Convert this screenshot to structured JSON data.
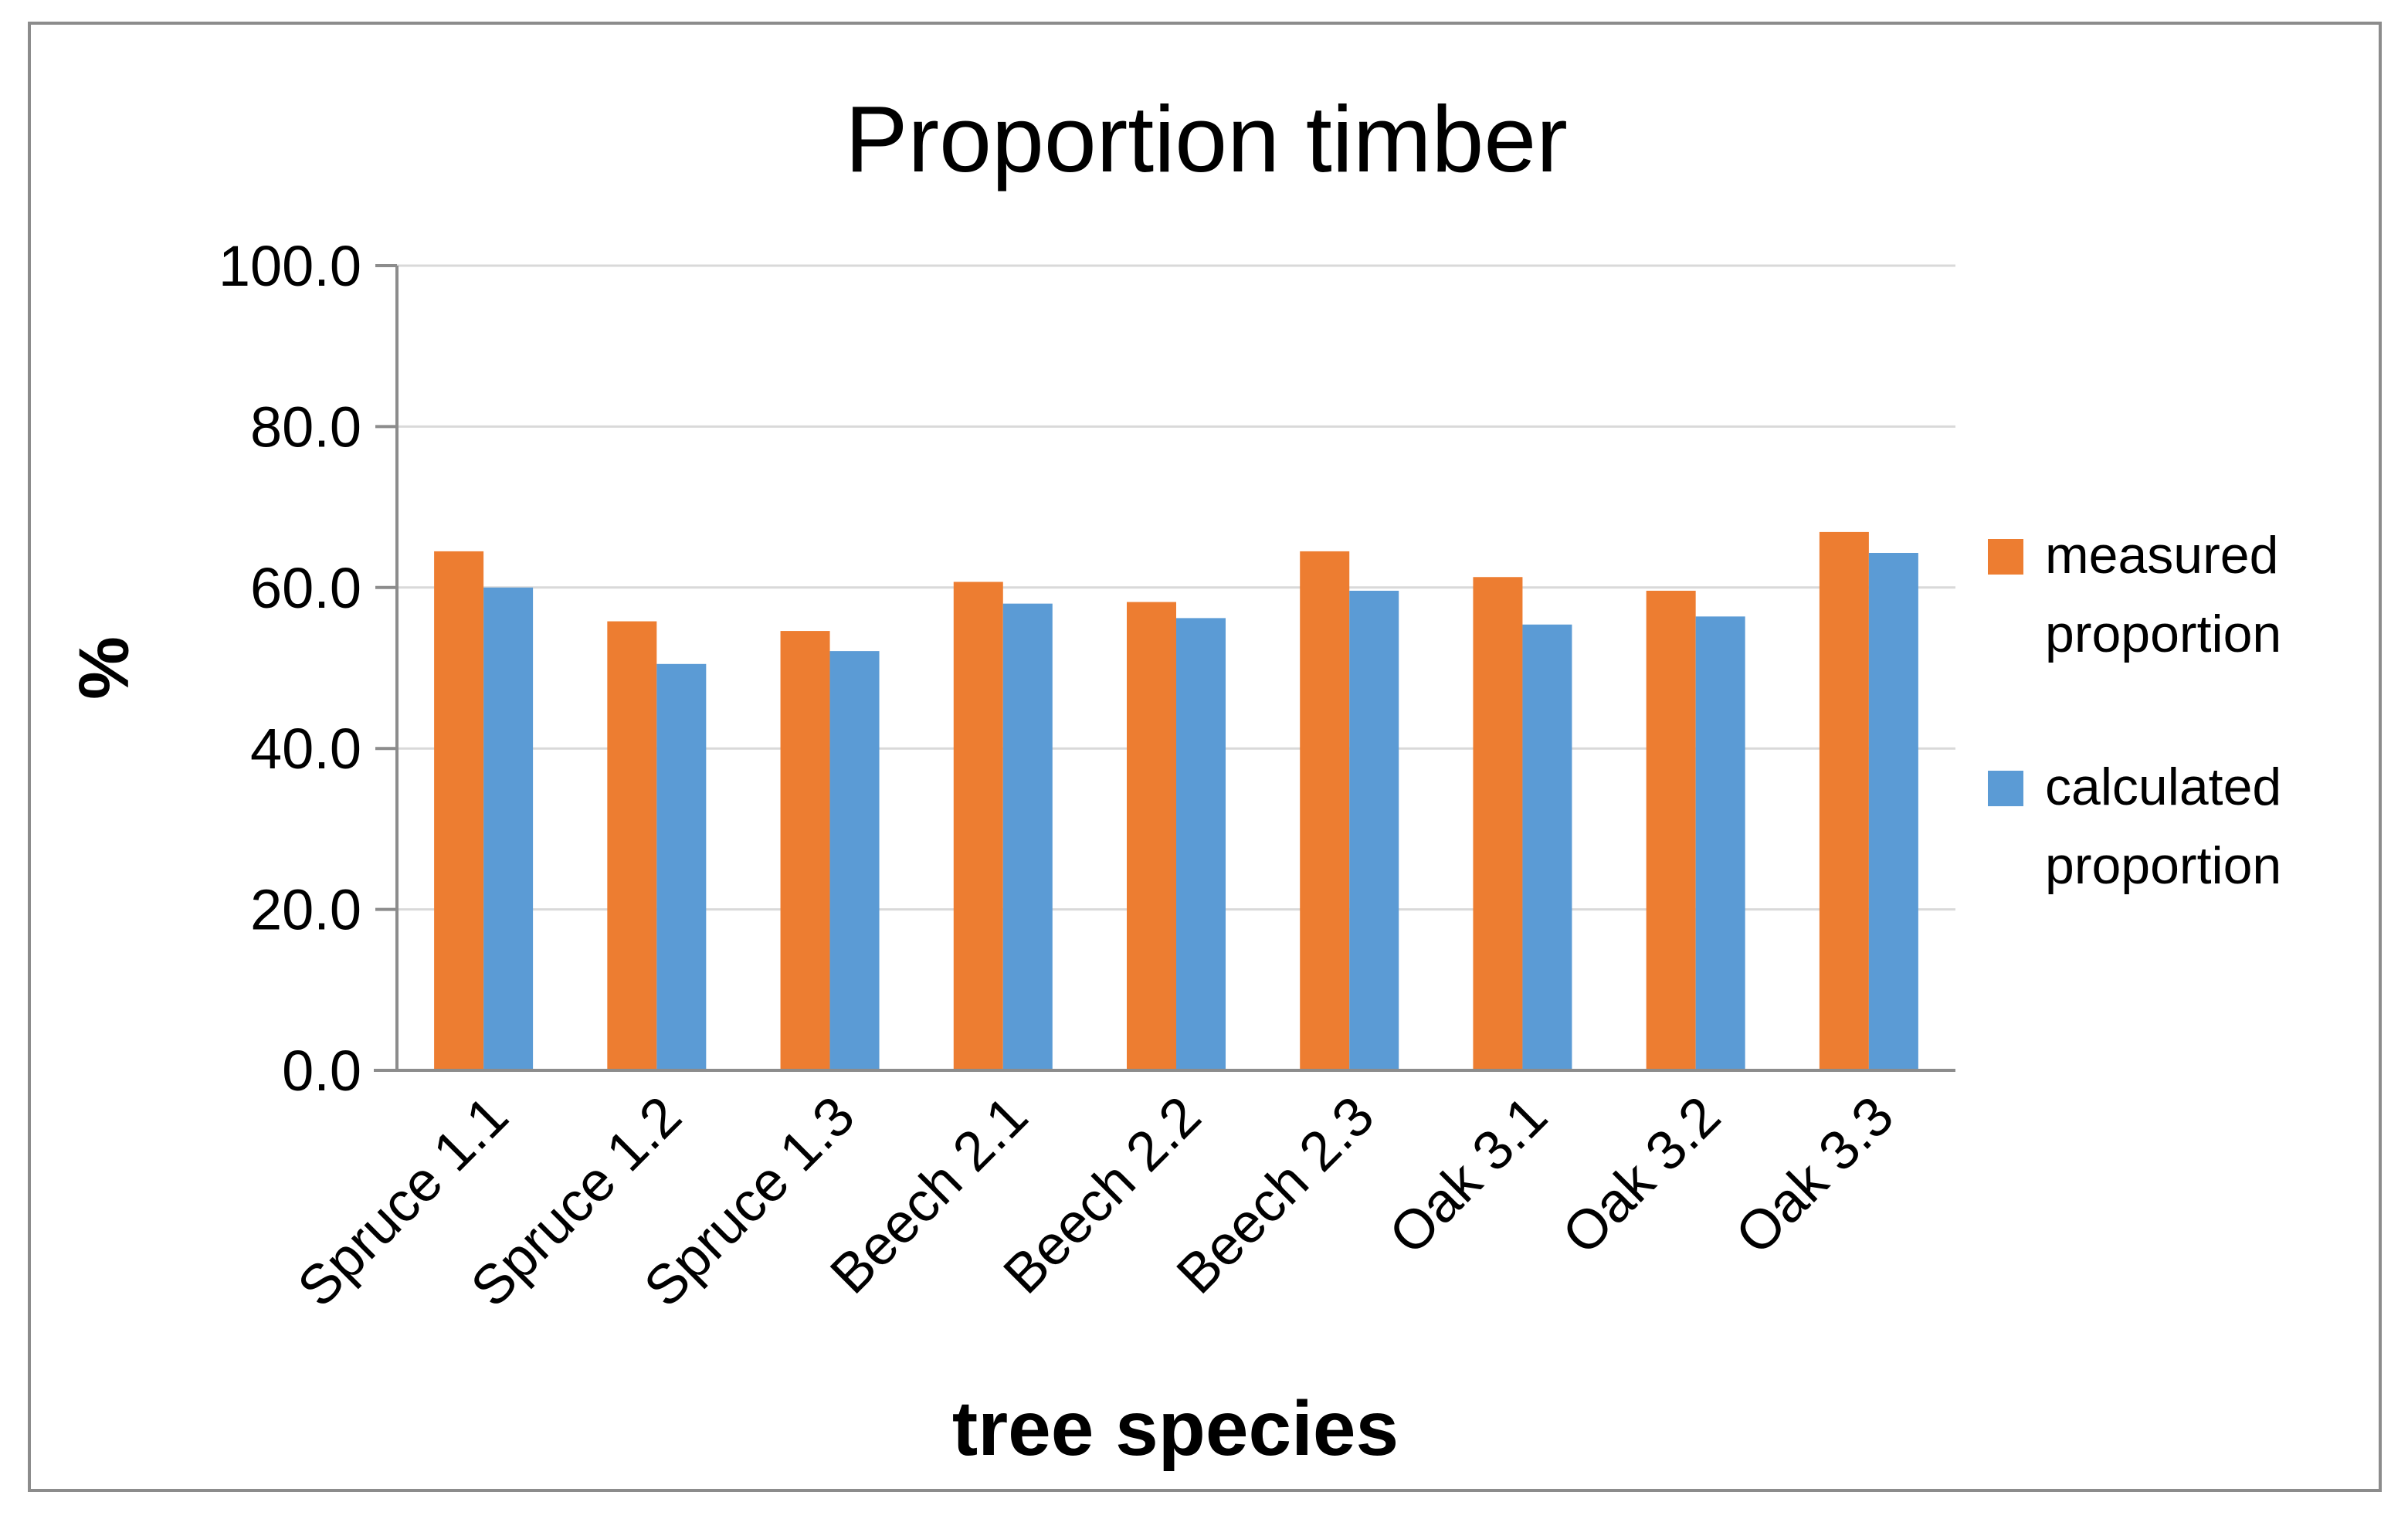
{
  "chart_data": {
    "type": "bar",
    "title": "Proportion timber",
    "xlabel": "tree species",
    "ylabel": "%",
    "ylim": [
      0,
      100
    ],
    "yticks": [
      "0.0",
      "20.0",
      "40.0",
      "60.0",
      "80.0",
      "100.0"
    ],
    "grid": true,
    "legend_position": "right",
    "categories": [
      "Spruce 1.1",
      "Spruce 1.2",
      "Spruce 1.3",
      "Beech 2.1",
      "Beech 2.2",
      "Beech 2.3",
      "Oak 3.1",
      "Oak 3.2",
      "Oak 3.3"
    ],
    "series": [
      {
        "name": "measured proportion",
        "legend_lines": [
          "measured",
          "proportion"
        ],
        "color": "#ED7D31",
        "values": [
          64.5,
          55.8,
          54.6,
          60.7,
          58.2,
          64.5,
          61.3,
          59.6,
          66.9
        ]
      },
      {
        "name": "calculated proportion",
        "legend_lines": [
          "calculated",
          "proportion"
        ],
        "color": "#5B9BD5",
        "values": [
          60.0,
          50.5,
          52.1,
          58.0,
          56.2,
          59.6,
          55.4,
          56.4,
          64.3
        ]
      }
    ]
  }
}
